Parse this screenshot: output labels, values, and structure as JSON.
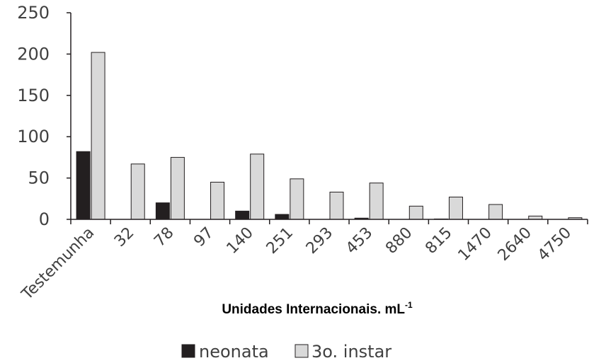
{
  "chart_data": {
    "type": "bar",
    "categories": [
      "Testemunha",
      "32",
      "78",
      "97",
      "140",
      "251",
      "293",
      "453",
      "880",
      "815",
      "1470",
      "2640",
      "4750"
    ],
    "series": [
      {
        "name": "neonata",
        "color": "#231f20",
        "values": [
          82,
          0,
          20,
          0,
          10,
          6,
          0,
          1.5,
          0,
          0.5,
          0,
          0,
          0
        ]
      },
      {
        "name": "3o. instar",
        "color": "#d9d9d9",
        "values": [
          202,
          67,
          75,
          45,
          79,
          49,
          33,
          44,
          16,
          27,
          18,
          4,
          2
        ]
      }
    ],
    "xlabel": "Unidades Internacionais. mL",
    "xlabel_superscript": "-1",
    "ylabel": "",
    "ylim": [
      0,
      250
    ],
    "yticks": [
      0,
      50,
      100,
      150,
      200,
      250
    ],
    "grid": false,
    "legend_position": "bottom"
  }
}
